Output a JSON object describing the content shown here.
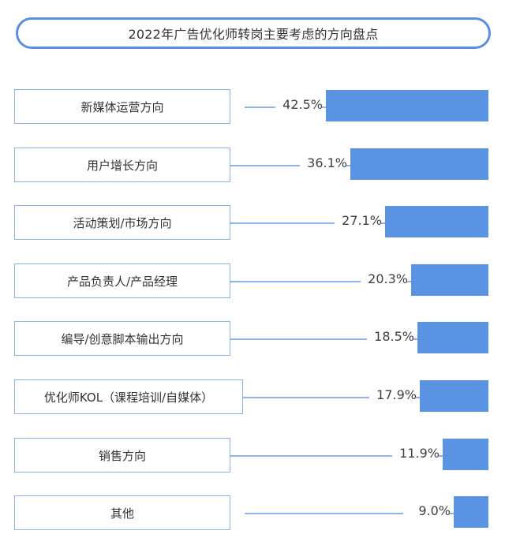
{
  "title": "2022年广告优化师转岗主要考虑的方向盘点",
  "colors": {
    "bar": "#5b93e3",
    "border": "#8fb3ec",
    "title_border": "#5b8ee0"
  },
  "rows": [
    {
      "label": "新媒体运营方向",
      "value": "42.5%"
    },
    {
      "label": "用户增长方向",
      "value": "36.1%"
    },
    {
      "label": "活动策划/市场方向",
      "value": "27.1%"
    },
    {
      "label": "产品负责人/产品经理",
      "value": "20.3%"
    },
    {
      "label": "编导/创意脚本输出方向",
      "value": "18.5%"
    },
    {
      "label": "优化师KOL（课程培训/自媒体）",
      "value": "17.9%"
    },
    {
      "label": "销售方向",
      "value": "11.9%"
    },
    {
      "label": "其他",
      "value": "9.0%"
    }
  ],
  "chart_data": {
    "type": "bar",
    "orientation": "horizontal",
    "title": "2022年广告优化师转岗主要考虑的方向盘点",
    "categories": [
      "新媒体运营方向",
      "用户增长方向",
      "活动策划/市场方向",
      "产品负责人/产品经理",
      "编导/创意脚本输出方向",
      "优化师KOL（课程培训/自媒体）",
      "销售方向",
      "其他"
    ],
    "values": [
      42.5,
      36.1,
      27.1,
      20.3,
      18.5,
      17.9,
      11.9,
      9.0
    ],
    "unit": "%",
    "xlabel": "",
    "ylabel": "",
    "grid": false,
    "legend": "none",
    "bar_alignment": "right"
  }
}
